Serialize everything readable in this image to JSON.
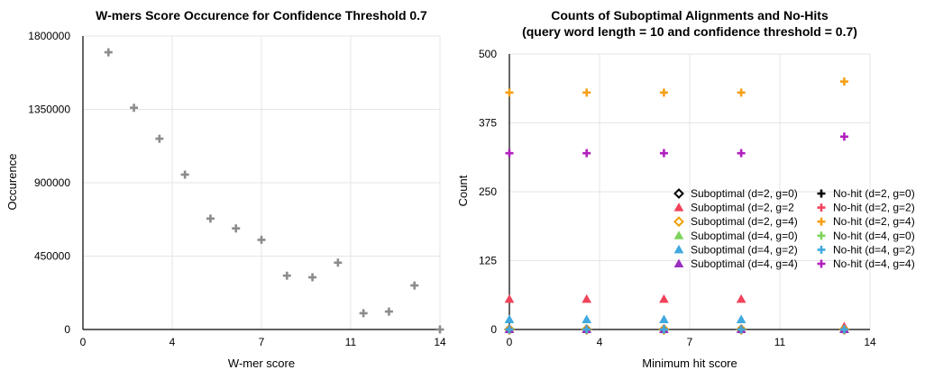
{
  "chart_data": [
    {
      "type": "scatter",
      "title": "W-mers Score Occurence for Confidence Threshold 0.7",
      "xlabel": "W-mer score",
      "ylabel": "Occurence",
      "xlim": [
        0,
        14
      ],
      "ylim": [
        0,
        1800000
      ],
      "xticks": [
        "0",
        "4",
        "7",
        "11",
        "14"
      ],
      "yticks": [
        "0",
        "450000",
        "900000",
        "1350000",
        "1800000"
      ],
      "grid": true,
      "colors": {
        "marker": "#8c8c8c",
        "grid": "#e6e6e6"
      },
      "series": [
        {
          "marker": "plus",
          "x": [
            1,
            2,
            3,
            4,
            5,
            6,
            7,
            8,
            9,
            10,
            11,
            12,
            13,
            14
          ],
          "y": [
            1700000,
            1360000,
            1170000,
            950000,
            680000,
            620000,
            550000,
            330000,
            320000,
            410000,
            100000,
            110000,
            270000,
            0
          ]
        }
      ]
    },
    {
      "type": "scatter",
      "title": "Counts of Suboptimal Alignments and No-Hits",
      "subtitle": "(query word length = 10 and confidence threshold = 0.7)",
      "xlabel": "Minimum hit score",
      "ylabel": "Count",
      "xlim": [
        0,
        14
      ],
      "ylim": [
        0,
        500
      ],
      "xticks": [
        "0",
        "4",
        "7",
        "11",
        "14"
      ],
      "yticks": [
        "0",
        "125",
        "250",
        "375",
        "500"
      ],
      "grid": true,
      "legend_position": "right",
      "colors": {
        "grid": "#e6e6e6"
      },
      "series": [
        {
          "name": "Suboptimal (d=2, g=0)",
          "marker": "diamond",
          "color": "#000000",
          "x": [
            0,
            3,
            6,
            9,
            13
          ],
          "y": [
            0,
            0,
            0,
            0,
            0
          ]
        },
        {
          "name": "Suboptimal (d=2, g=2",
          "marker": "triangle",
          "color": "#f0435a",
          "x": [
            0,
            3,
            6,
            9,
            13
          ],
          "y": [
            55,
            55,
            55,
            55,
            5
          ]
        },
        {
          "name": "Suboptimal (d=2, g=4)",
          "marker": "diamond",
          "color": "#f0a000",
          "x": [
            0,
            3,
            6,
            9,
            13
          ],
          "y": [
            0,
            0,
            0,
            0,
            0
          ]
        },
        {
          "name": "Suboptimal (d=4, g=0)",
          "marker": "triangle",
          "color": "#7dd35c",
          "x": [
            0,
            3,
            6,
            9,
            13
          ],
          "y": [
            0,
            0,
            0,
            0,
            0
          ]
        },
        {
          "name": "Suboptimal (d=4, g=2)",
          "marker": "triangle",
          "color": "#3fa9e0",
          "x": [
            0,
            3,
            6,
            9,
            13
          ],
          "y": [
            18,
            18,
            18,
            18,
            0
          ]
        },
        {
          "name": "Suboptimal (d=4, g=4)",
          "marker": "triangle",
          "color": "#9b2fc0",
          "x": [
            0,
            3,
            6,
            9,
            13
          ],
          "y": [
            0,
            0,
            0,
            0,
            0
          ]
        },
        {
          "name": "No-hit (d=2, g=0)",
          "marker": "plus",
          "color": "#000000",
          "x": [
            0,
            3,
            6,
            9,
            13
          ],
          "y": [
            0,
            0,
            0,
            0,
            0
          ]
        },
        {
          "name": "No-hit (d=2, g=2)",
          "marker": "plus",
          "color": "#f0435a",
          "x": [
            0,
            3,
            6,
            9,
            13
          ],
          "y": [
            0,
            0,
            0,
            0,
            0
          ]
        },
        {
          "name": "No-hit (d=2, g=4)",
          "marker": "plus",
          "color": "#f5a01a",
          "x": [
            0,
            3,
            6,
            9,
            13
          ],
          "y": [
            430,
            430,
            430,
            430,
            450
          ]
        },
        {
          "name": "No-hit (d=4, g=0)",
          "marker": "plus",
          "color": "#7dd35c",
          "x": [
            0,
            3,
            6,
            9,
            13
          ],
          "y": [
            0,
            0,
            0,
            0,
            0
          ]
        },
        {
          "name": "No-hit (d=4, g=2)",
          "marker": "plus",
          "color": "#3fa9e0",
          "x": [
            0,
            3,
            6,
            9,
            13
          ],
          "y": [
            0,
            0,
            0,
            0,
            0
          ]
        },
        {
          "name": "No-hit (d=4, g=4)",
          "marker": "plus",
          "color": "#b11fbf",
          "x": [
            0,
            3,
            6,
            9,
            13
          ],
          "y": [
            320,
            320,
            320,
            320,
            350
          ]
        }
      ]
    }
  ]
}
